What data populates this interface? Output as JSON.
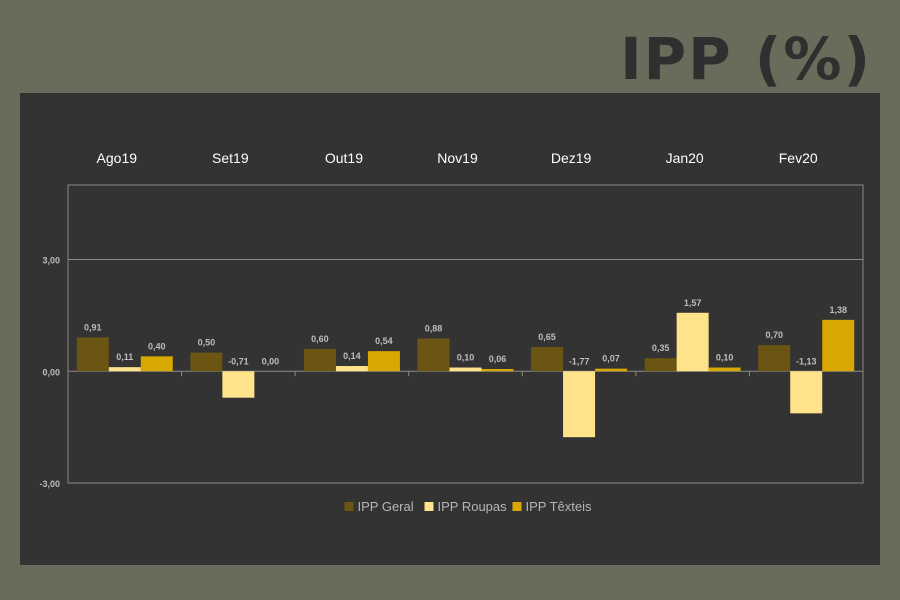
{
  "page": {
    "title": "IPP (%)"
  },
  "chart_data": {
    "type": "bar",
    "title": "IPP (%)",
    "categories": [
      "Ago19",
      "Set19",
      "Out19",
      "Nov19",
      "Dez19",
      "Jan20",
      "Fev20"
    ],
    "series": [
      {
        "name": "IPP Geral",
        "color": "#6b5512",
        "values": [
          0.91,
          0.5,
          0.6,
          0.88,
          0.65,
          0.35,
          0.7
        ],
        "labels": [
          "0,91",
          "0,50",
          "0,60",
          "0,88",
          "0,65",
          "0,35",
          "0,70"
        ]
      },
      {
        "name": "IPP Roupas",
        "color": "#ffe38a",
        "values": [
          0.11,
          -0.71,
          0.14,
          0.1,
          -1.77,
          1.57,
          -1.13
        ],
        "labels": [
          "0,11",
          "-0,71",
          "0,14",
          "0,10",
          "-1,77",
          "1,57",
          "-1,13"
        ]
      },
      {
        "name": "IPP Têxteis",
        "color": "#d9a800",
        "values": [
          0.4,
          0.0,
          0.54,
          0.06,
          0.07,
          0.1,
          1.38
        ],
        "labels": [
          "0,40",
          "0,00",
          "0,54",
          "0,06",
          "0,07",
          "0,10",
          "1,38"
        ]
      }
    ],
    "yticks": [
      {
        "value": -3,
        "label": "-3,00"
      },
      {
        "value": 0,
        "label": "0,00"
      },
      {
        "value": 3,
        "label": "3,00"
      }
    ],
    "ylim": [
      -3,
      5
    ],
    "grid": true,
    "legend_position": "bottom"
  }
}
